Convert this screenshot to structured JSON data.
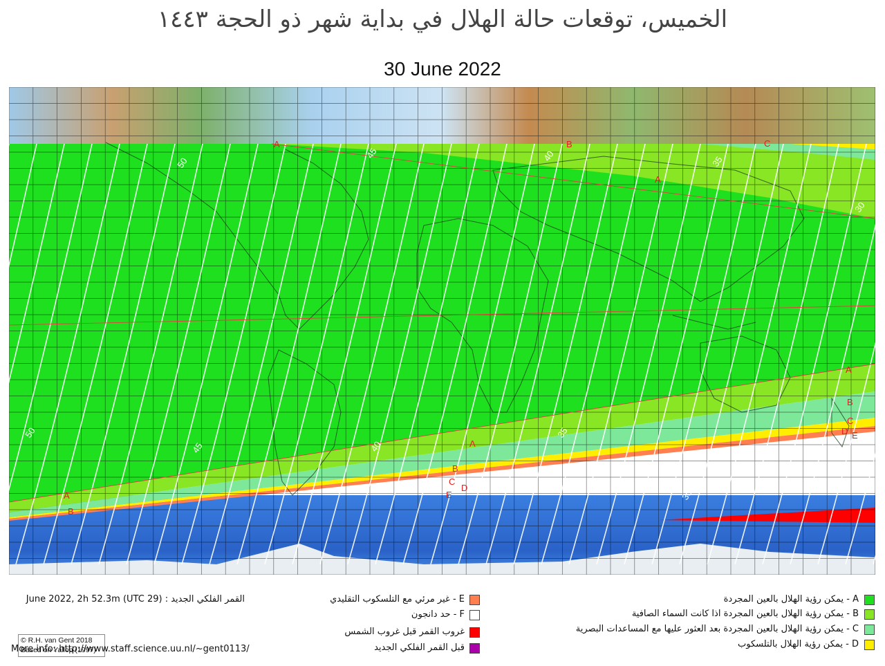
{
  "title": "الخميس، توقعات حالة الهلال في بداية شهر ذو الحجة ١٤٤٣",
  "date": "30 June 2022",
  "credit": {
    "line1": "© R.H. van Gent 2018",
    "line2": "Based on Yallop (1997)"
  },
  "map": {
    "contour_labels": [
      {
        "text": "50"
      },
      {
        "text": "45"
      },
      {
        "text": "40"
      },
      {
        "text": "35"
      },
      {
        "text": "30"
      },
      {
        "text": "50"
      },
      {
        "text": "45"
      },
      {
        "text": "40"
      },
      {
        "text": "35"
      },
      {
        "text": "30"
      }
    ],
    "zone_letters": [
      "A",
      "B",
      "C",
      "A",
      "A",
      "B",
      "C",
      "D",
      "E",
      "A",
      "B",
      "C",
      "D",
      "E",
      "A",
      "B"
    ],
    "colors": {
      "zone_a": "#1ee01e",
      "zone_b": "#88e624",
      "zone_c": "#7ee89a",
      "zone_d": "#ffee00",
      "zone_e": "#ff7f50",
      "moonset_before_sunset": "#ff0000",
      "before_new_moon": "#aa00aa",
      "ocean": "#2f6fd6",
      "curve": "#ffffff",
      "boundary": "#e04040"
    }
  },
  "legend": {
    "right": [
      {
        "text": "A - يمكن رؤية الهلال بالعين المجردة",
        "color": "#1ee01e"
      },
      {
        "text": "B - يمكن رؤية الهلال بالعين المجردة اذا كانت السماء الصافية",
        "color": "#88e624"
      },
      {
        "text": "C - يمكن رؤية الهلال بالعين المجردة بعد العثور عليها مع المساعدات البصرية",
        "color": "#7ee89a"
      },
      {
        "text": "D - يمكن رؤية الهلال بالتلسكوب",
        "color": "#ffee00"
      }
    ],
    "middle": [
      {
        "text": "E - غير مرئي مع التلسكوب التقليدي",
        "color": "#ff7f50"
      },
      {
        "text": "F - حد دانجون",
        "color": "#ffffff"
      },
      {
        "text": "غروب القمر قبل غروب الشمس",
        "color": "#ff0000"
      },
      {
        "text": "قبل القمر  الفلكي الجديد",
        "color": "#aa00aa"
      }
    ]
  },
  "info": {
    "new_moon": "القمر الفلكي الجديد :  (29 June 2022, 2h 52.3m (UTC",
    "more": "More info: http://www.staff.science.uu.nl/~gent0113/"
  }
}
